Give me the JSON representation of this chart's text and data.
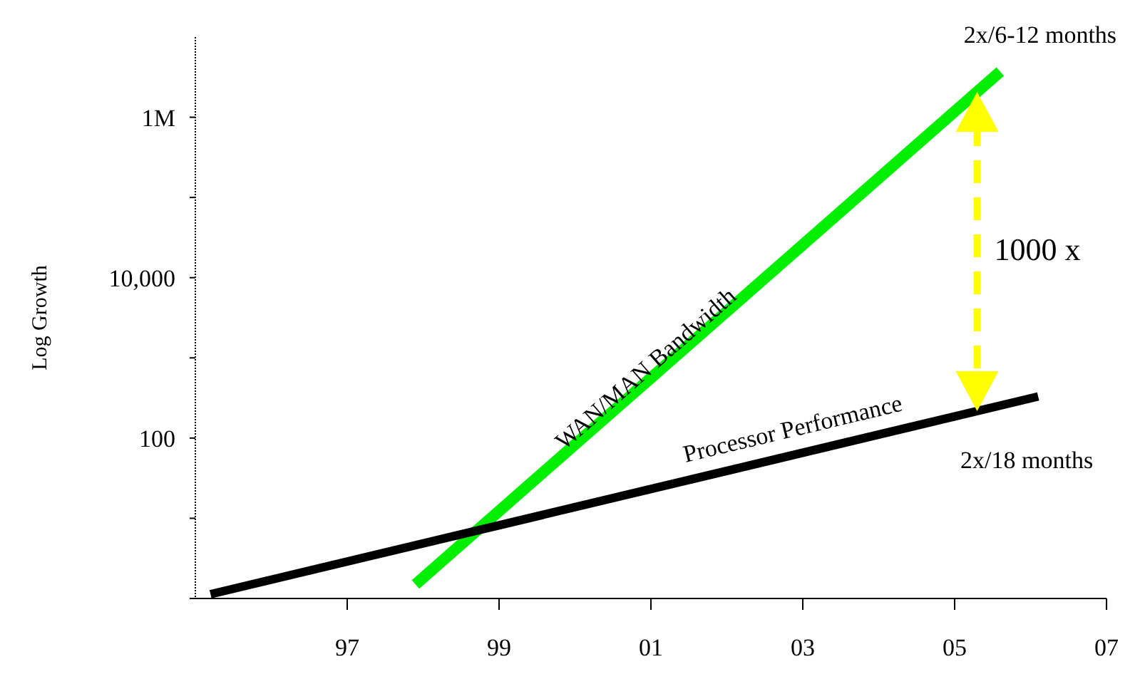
{
  "chart_data": {
    "type": "line",
    "ylabel": "Log Growth",
    "log": "y",
    "marker": "none",
    "line_style": "solid",
    "xlim": [
      1995,
      2007
    ],
    "xticks": [
      {
        "value": 1997,
        "label": "97"
      },
      {
        "value": 1999,
        "label": "99"
      },
      {
        "value": 2001,
        "label": "01"
      },
      {
        "value": 2003,
        "label": "03"
      },
      {
        "value": 2005,
        "label": "05"
      },
      {
        "value": 2007,
        "label": "07"
      }
    ],
    "ylim": [
      1,
      10000000
    ],
    "yticks": [
      {
        "value": 1,
        "label": null
      },
      {
        "value": 10,
        "label": null
      },
      {
        "value": 100,
        "label": "100"
      },
      {
        "value": 1000,
        "label": null
      },
      {
        "value": 10000,
        "label": "10,000"
      },
      {
        "value": 100000,
        "label": null
      },
      {
        "value": 1000000,
        "label": "1M"
      }
    ],
    "series": [
      {
        "name": "WAN/MAN Bandwidth",
        "color": "#00ee00",
        "x": [
          1997.9,
          2005.6
        ],
        "values": [
          1.5,
          3700000
        ]
      },
      {
        "name": "Processor Performance",
        "color": "#000000",
        "x": [
          1995.2,
          2006.1
        ],
        "values": [
          1.13,
          330
        ]
      }
    ],
    "annotations": [
      "2x/6-12 months",
      "1000 x",
      "2x/18 months"
    ]
  }
}
